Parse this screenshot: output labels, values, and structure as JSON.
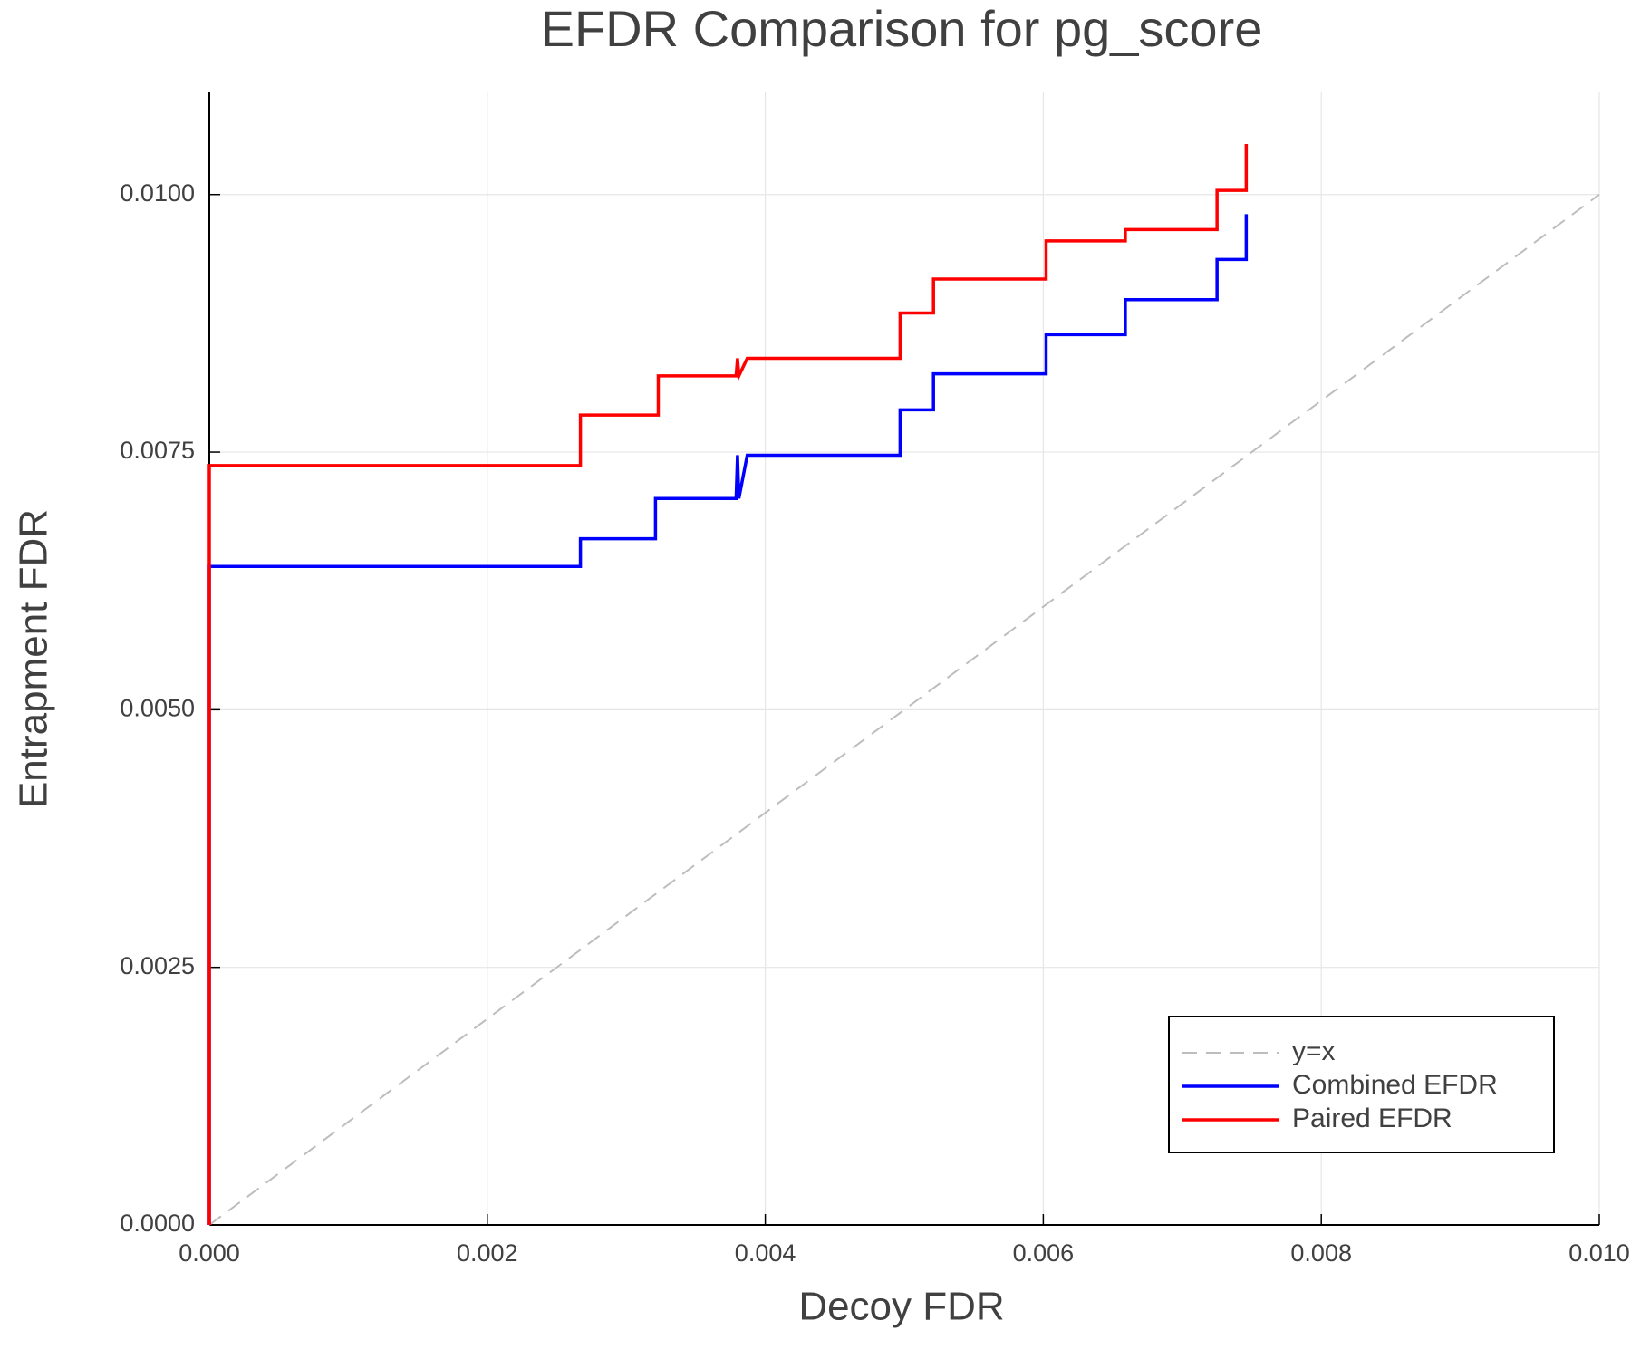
{
  "chart_data": {
    "type": "line",
    "title": "EFDR Comparison for pg_score",
    "x_label": "Decoy FDR",
    "y_label": "Entrapment FDR",
    "xlim": [
      0,
      0.01
    ],
    "ylim": [
      0,
      0.011
    ],
    "xticks": [
      {
        "value": 0,
        "label": "0.000"
      },
      0.002,
      0.004,
      0.006,
      0.008,
      {
        "value": 0.01,
        "label": "0.010"
      }
    ],
    "yticks": [
      {
        "value": 0,
        "label": "0.0000"
      },
      0.0025,
      {
        "value": 0.005,
        "label": "0.0050"
      },
      0.0075,
      {
        "value": 0.01,
        "label": "0.0100"
      }
    ],
    "grid": true,
    "legend": "bottom right",
    "series": [
      {
        "name": "y=x",
        "color": "#bdbdbd",
        "dash": "dashed",
        "x": [
          0,
          0.01
        ],
        "values": [
          0,
          0.01
        ]
      },
      {
        "name": "Combined EFDR",
        "color": "#0000ff",
        "x": [
          0,
          0,
          0.00267,
          0.00267,
          0.00321,
          0.00321,
          0.00379,
          0.0038,
          0.00381,
          0.00387,
          0.00497,
          0.00497,
          0.00521,
          0.00521,
          0.00602,
          0.00602,
          0.00659,
          0.00659,
          0.00725,
          0.00725,
          0.00746,
          0.00746
        ],
        "values": [
          0,
          0.00639,
          0.00639,
          0.00666,
          0.00666,
          0.00705,
          0.00705,
          0.00747,
          0.00705,
          0.00747,
          0.00747,
          0.00791,
          0.00791,
          0.00826,
          0.00826,
          0.00864,
          0.00864,
          0.00898,
          0.00898,
          0.00937,
          0.00937,
          0.00981
        ]
      },
      {
        "name": "Paired EFDR",
        "color": "#ff0000",
        "x": [
          0,
          0,
          0.00267,
          0.00267,
          0.00323,
          0.00323,
          0.00379,
          0.0038,
          0.00381,
          0.00387,
          0.00497,
          0.00497,
          0.00521,
          0.00521,
          0.00602,
          0.00602,
          0.00659,
          0.00659,
          0.00725,
          0.00725,
          0.00746,
          0.00746
        ],
        "values": [
          0,
          0.00737,
          0.00737,
          0.00786,
          0.00786,
          0.00824,
          0.00824,
          0.00841,
          0.00824,
          0.00841,
          0.00841,
          0.00885,
          0.00885,
          0.00918,
          0.00918,
          0.00955,
          0.00955,
          0.00966,
          0.00966,
          0.01004,
          0.01004,
          0.01049
        ]
      }
    ]
  }
}
